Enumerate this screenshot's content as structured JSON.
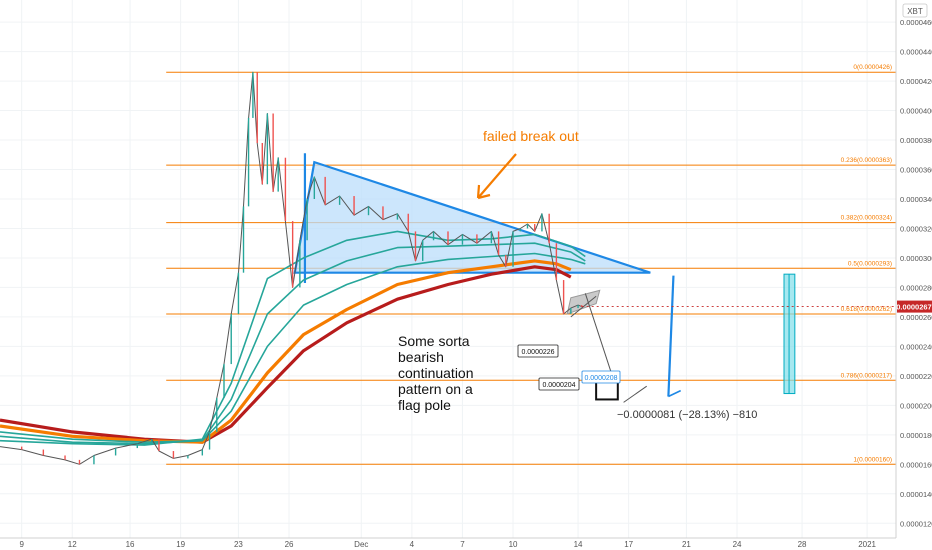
{
  "chart_data": {
    "type": "line",
    "currency_label": "XBT",
    "y_axis": {
      "ylim": [
        1.1e-05,
        4.75e-05
      ],
      "ticks": [
        "0.0000120",
        "0.0000140",
        "0.0000160",
        "0.0000180",
        "0.0000200",
        "0.0000220",
        "0.0000240",
        "0.0000260",
        "0.0000280",
        "0.0000300",
        "0.0000320",
        "0.0000340",
        "0.0000360",
        "0.0000380",
        "0.0000400",
        "0.0000420",
        "0.0000440",
        "0.0000460"
      ],
      "tick_values": [
        1.2e-05,
        1.4e-05,
        1.6e-05,
        1.8e-05,
        2e-05,
        2.2e-05,
        2.4e-05,
        2.6e-05,
        2.8e-05,
        3e-05,
        3.2e-05,
        3.4e-05,
        3.6e-05,
        3.8e-05,
        4e-05,
        4.2e-05,
        4.4e-05,
        4.6e-05
      ],
      "current_price_label": "0.0000267",
      "current_price": 2.67e-05
    },
    "x_axis": {
      "xlim": [
        0,
        124
      ],
      "ticks": [
        {
          "label": "9",
          "x": 3
        },
        {
          "label": "12",
          "x": 10
        },
        {
          "label": "16",
          "x": 18
        },
        {
          "label": "19",
          "x": 25
        },
        {
          "label": "23",
          "x": 33
        },
        {
          "label": "26",
          "x": 40
        },
        {
          "label": "Dec",
          "x": 50
        },
        {
          "label": "4",
          "x": 57
        },
        {
          "label": "7",
          "x": 64
        },
        {
          "label": "10",
          "x": 71
        },
        {
          "label": "14",
          "x": 80
        },
        {
          "label": "17",
          "x": 87
        },
        {
          "label": "21",
          "x": 95
        },
        {
          "label": "24",
          "x": 102
        },
        {
          "label": "28",
          "x": 111
        },
        {
          "label": "2021",
          "x": 120
        }
      ]
    },
    "fib_levels": [
      {
        "label": "0(0.0000426)",
        "value": 4.26e-05
      },
      {
        "label": "0.236(0.0000363)",
        "value": 3.63e-05
      },
      {
        "label": "0.382(0.0000324)",
        "value": 3.24e-05
      },
      {
        "label": "0.5(0.0000293)",
        "value": 2.93e-05
      },
      {
        "label": "0.618(0.0000262)",
        "value": 2.62e-05
      },
      {
        "label": "0.786(0.0000217)",
        "value": 2.17e-05
      },
      {
        "label": "1(0.0000160)",
        "value": 1.6e-05
      }
    ],
    "fib_x_range": [
      23,
      124
    ],
    "price_series": [
      [
        0,
        1.72e-05
      ],
      [
        3,
        1.7e-05
      ],
      [
        6,
        1.66e-05
      ],
      [
        9,
        1.63e-05
      ],
      [
        11,
        1.6e-05
      ],
      [
        13,
        1.66e-05
      ],
      [
        16,
        1.71e-05
      ],
      [
        19,
        1.74e-05
      ],
      [
        21,
        1.77e-05
      ],
      [
        22,
        1.69e-05
      ],
      [
        24,
        1.64e-05
      ],
      [
        26,
        1.66e-05
      ],
      [
        28,
        1.7e-05
      ],
      [
        29,
        1.82e-05
      ],
      [
        30,
        2.05e-05
      ],
      [
        31,
        2.28e-05
      ],
      [
        32,
        2.62e-05
      ],
      [
        33,
        2.9e-05
      ],
      [
        33.7,
        3.35e-05
      ],
      [
        34.4,
        3.95e-05
      ],
      [
        35,
        4.26e-05
      ],
      [
        35.6,
        3.78e-05
      ],
      [
        36.3,
        3.5e-05
      ],
      [
        37,
        3.98e-05
      ],
      [
        37.8,
        3.45e-05
      ],
      [
        38.5,
        3.68e-05
      ],
      [
        39.5,
        3.25e-05
      ],
      [
        40.5,
        2.8e-05
      ],
      [
        41.5,
        3.12e-05
      ],
      [
        42.5,
        3.4e-05
      ],
      [
        43.5,
        3.55e-05
      ],
      [
        45,
        3.36e-05
      ],
      [
        47,
        3.42e-05
      ],
      [
        49,
        3.29e-05
      ],
      [
        51,
        3.35e-05
      ],
      [
        53,
        3.26e-05
      ],
      [
        55,
        3.3e-05
      ],
      [
        56.5,
        3.18e-05
      ],
      [
        57.5,
        2.98e-05
      ],
      [
        58.5,
        3.12e-05
      ],
      [
        60,
        3.18e-05
      ],
      [
        62,
        3.09e-05
      ],
      [
        64,
        3.16e-05
      ],
      [
        66,
        3.1e-05
      ],
      [
        68,
        3.18e-05
      ],
      [
        69,
        3.02e-05
      ],
      [
        70,
        2.94e-05
      ],
      [
        71,
        3.18e-05
      ],
      [
        72,
        3.2e-05
      ],
      [
        73,
        3.23e-05
      ],
      [
        74,
        3.18e-05
      ],
      [
        75,
        3.3e-05
      ],
      [
        76,
        3.1e-05
      ],
      [
        77,
        2.85e-05
      ],
      [
        78,
        2.62e-05
      ],
      [
        79,
        2.66e-05
      ],
      [
        80,
        2.68e-05
      ],
      [
        80.5,
        2.67e-05
      ]
    ],
    "ma_series": [
      {
        "color": "#b71c1c",
        "width": 3.2,
        "points": [
          [
            0,
            1.9e-05
          ],
          [
            10,
            1.82e-05
          ],
          [
            20,
            1.77e-05
          ],
          [
            28,
            1.75e-05
          ],
          [
            32,
            1.86e-05
          ],
          [
            37,
            2.12e-05
          ],
          [
            42,
            2.37e-05
          ],
          [
            48,
            2.56e-05
          ],
          [
            55,
            2.72e-05
          ],
          [
            62,
            2.82e-05
          ],
          [
            68,
            2.89e-05
          ],
          [
            74,
            2.94e-05
          ],
          [
            77,
            2.92e-05
          ],
          [
            79,
            2.87e-05
          ]
        ]
      },
      {
        "color": "#f57c00",
        "width": 3.2,
        "points": [
          [
            0,
            1.86e-05
          ],
          [
            10,
            1.79e-05
          ],
          [
            20,
            1.76e-05
          ],
          [
            28,
            1.75e-05
          ],
          [
            32,
            1.9e-05
          ],
          [
            37,
            2.22e-05
          ],
          [
            42,
            2.48e-05
          ],
          [
            48,
            2.65e-05
          ],
          [
            55,
            2.82e-05
          ],
          [
            62,
            2.9e-05
          ],
          [
            68,
            2.94e-05
          ],
          [
            74,
            2.98e-05
          ],
          [
            77,
            2.96e-05
          ],
          [
            79,
            2.92e-05
          ]
        ]
      },
      {
        "color": "#26a69a",
        "width": 1.6,
        "points": [
          [
            0,
            1.82e-05
          ],
          [
            10,
            1.77e-05
          ],
          [
            20,
            1.75e-05
          ],
          [
            28,
            1.76e-05
          ],
          [
            32,
            1.96e-05
          ],
          [
            37,
            2.4e-05
          ],
          [
            42,
            2.68e-05
          ],
          [
            48,
            2.82e-05
          ],
          [
            55,
            2.94e-05
          ],
          [
            62,
            2.99e-05
          ],
          [
            68,
            3.01e-05
          ],
          [
            74,
            3.03e-05
          ],
          [
            79,
            2.99e-05
          ],
          [
            81,
            2.96e-05
          ]
        ]
      },
      {
        "color": "#26a69a",
        "width": 1.6,
        "points": [
          [
            0,
            1.79e-05
          ],
          [
            10,
            1.75e-05
          ],
          [
            20,
            1.74e-05
          ],
          [
            28,
            1.76e-05
          ],
          [
            32,
            2.04e-05
          ],
          [
            37,
            2.62e-05
          ],
          [
            42,
            2.85e-05
          ],
          [
            48,
            2.98e-05
          ],
          [
            55,
            3.07e-05
          ],
          [
            62,
            3.08e-05
          ],
          [
            68,
            3.09e-05
          ],
          [
            74,
            3.1e-05
          ],
          [
            79,
            3.04e-05
          ],
          [
            81,
            2.98e-05
          ]
        ]
      },
      {
        "color": "#26a69a",
        "width": 1.6,
        "points": [
          [
            0,
            1.76e-05
          ],
          [
            10,
            1.74e-05
          ],
          [
            20,
            1.73e-05
          ],
          [
            28,
            1.77e-05
          ],
          [
            32,
            2.15e-05
          ],
          [
            37,
            2.86e-05
          ],
          [
            42,
            3e-05
          ],
          [
            48,
            3.12e-05
          ],
          [
            55,
            3.18e-05
          ],
          [
            62,
            3.12e-05
          ],
          [
            68,
            3.13e-05
          ],
          [
            74,
            3.16e-05
          ],
          [
            79,
            3.08e-05
          ],
          [
            81,
            3.01e-05
          ]
        ]
      }
    ],
    "annotations": {
      "failed_breakout": "failed break out",
      "pattern_note": "Some sorta bearish continuation pattern on a flag pole",
      "pattern_note_lines": [
        "Some sorta",
        "bearish",
        "continuation",
        "pattern on a",
        "flag pole"
      ],
      "price_label_1": "0.0000226",
      "price_label_2": "0.0000204",
      "price_label_3": "0.0000208",
      "measure_text": "−0.0000081 (−28.13%) −810"
    },
    "colors": {
      "fib": "#f57c00",
      "triangle": "#1e88e5",
      "triangle_fill": "#bbdefb",
      "annotation_text": "#f57c00",
      "current_price_bg": "#c62828",
      "measure_fill": "#80deea",
      "measure_stroke": "#00acc1",
      "candles_up": "#26a69a",
      "candles_down": "#ef5350"
    }
  }
}
